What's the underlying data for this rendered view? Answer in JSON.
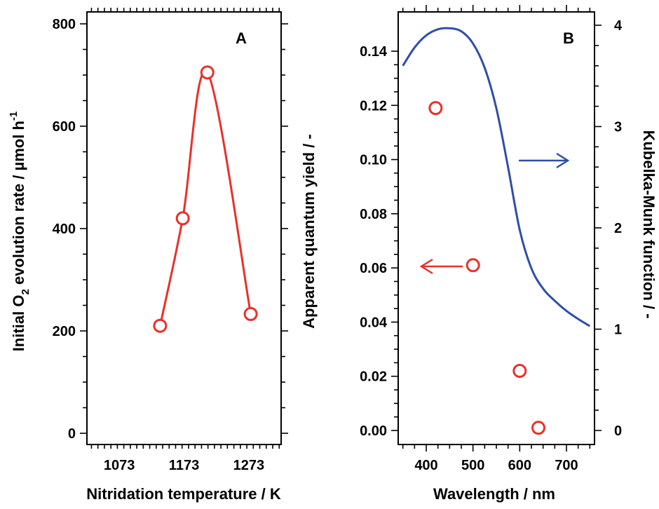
{
  "chart_data": [
    {
      "panel": "A",
      "type": "line",
      "panel_label": "A",
      "xlabel": "Nitridation temperature / K",
      "ylabel": {
        "pre": "Initial O",
        "sub": "2",
        "mid": " evolution rate / µmol h",
        "sup": "-1"
      },
      "xlim": [
        1023,
        1323
      ],
      "ylim": [
        0,
        800
      ],
      "xticks": [
        1073,
        1173,
        1273
      ],
      "yticks": [
        0,
        200,
        400,
        600,
        800
      ],
      "series": [
        {
          "name": "O2 evolution rate",
          "color": "#e8312a",
          "marker": "circle",
          "x": [
            1136,
            1171,
            1209,
            1276
          ],
          "y": [
            210,
            420,
            705,
            233
          ]
        }
      ]
    },
    {
      "panel": "B",
      "type": "scatter+line",
      "panel_label": "B",
      "xlabel": "Wavelength / nm",
      "ylabel_left": "Apparent quantum yield / -",
      "ylabel_right": "Kubelka-Munk function / -",
      "xlim": [
        340,
        760
      ],
      "ylim_left": [
        -0.006,
        0.15
      ],
      "ylim_right": [
        -0.16,
        4.0
      ],
      "xticks": [
        400,
        500,
        600,
        700
      ],
      "yticks_left": [
        "0.00",
        "0.02",
        "0.04",
        "0.06",
        "0.08",
        "0.10",
        "0.12",
        "0.14"
      ],
      "yticks_right": [
        0,
        1,
        2,
        3,
        4
      ],
      "series": [
        {
          "name": "Apparent quantum yield",
          "axis": "left",
          "type": "scatter",
          "color": "#e8312a",
          "marker": "circle",
          "x": [
            420,
            500,
            600,
            640
          ],
          "y": [
            0.119,
            0.061,
            0.022,
            0.001
          ]
        },
        {
          "name": "Kubelka-Munk function",
          "axis": "right",
          "type": "line",
          "color": "#2e4ea8",
          "x": [
            350,
            375,
            400,
            425,
            450,
            475,
            500,
            525,
            550,
            575,
            600,
            625,
            650,
            675,
            700,
            725,
            750
          ],
          "y": [
            3.6,
            3.78,
            3.9,
            3.96,
            3.97,
            3.94,
            3.82,
            3.58,
            3.18,
            2.6,
            1.98,
            1.6,
            1.4,
            1.28,
            1.18,
            1.1,
            1.03
          ]
        }
      ],
      "annotations": [
        {
          "type": "arrow",
          "direction": "left",
          "color": "#e8312a",
          "points_to": "left axis"
        },
        {
          "type": "arrow",
          "direction": "right",
          "color": "#2e4ea8",
          "points_to": "right axis"
        }
      ]
    }
  ]
}
